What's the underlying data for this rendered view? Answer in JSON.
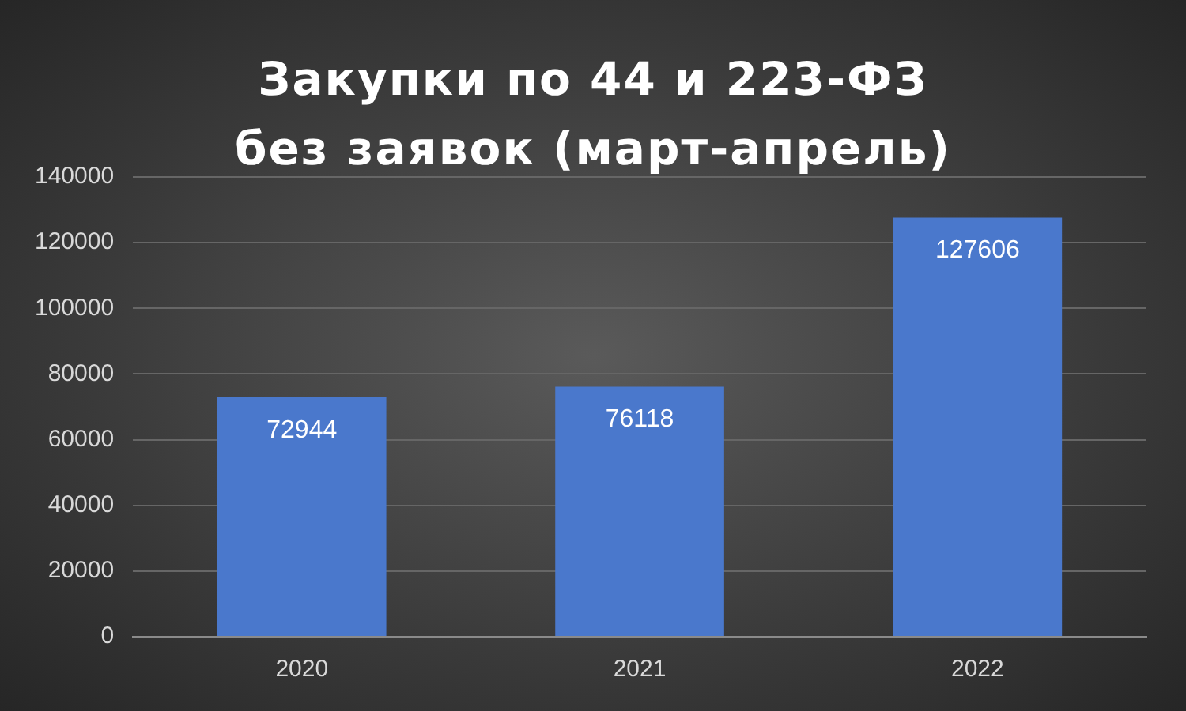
{
  "chart_data": {
    "type": "bar",
    "title": "Закупки по 44 и 223-ФЗ без заявок (март-апрель)",
    "categories": [
      "2020",
      "2021",
      "2022"
    ],
    "values": [
      72944,
      76118,
      127606
    ],
    "color": "#4a78cc",
    "ylim": [
      0,
      140000
    ],
    "yticks": [
      0,
      20000,
      40000,
      60000,
      80000,
      100000,
      120000,
      140000
    ],
    "grid": "y",
    "data_labels": true,
    "legend": false
  }
}
